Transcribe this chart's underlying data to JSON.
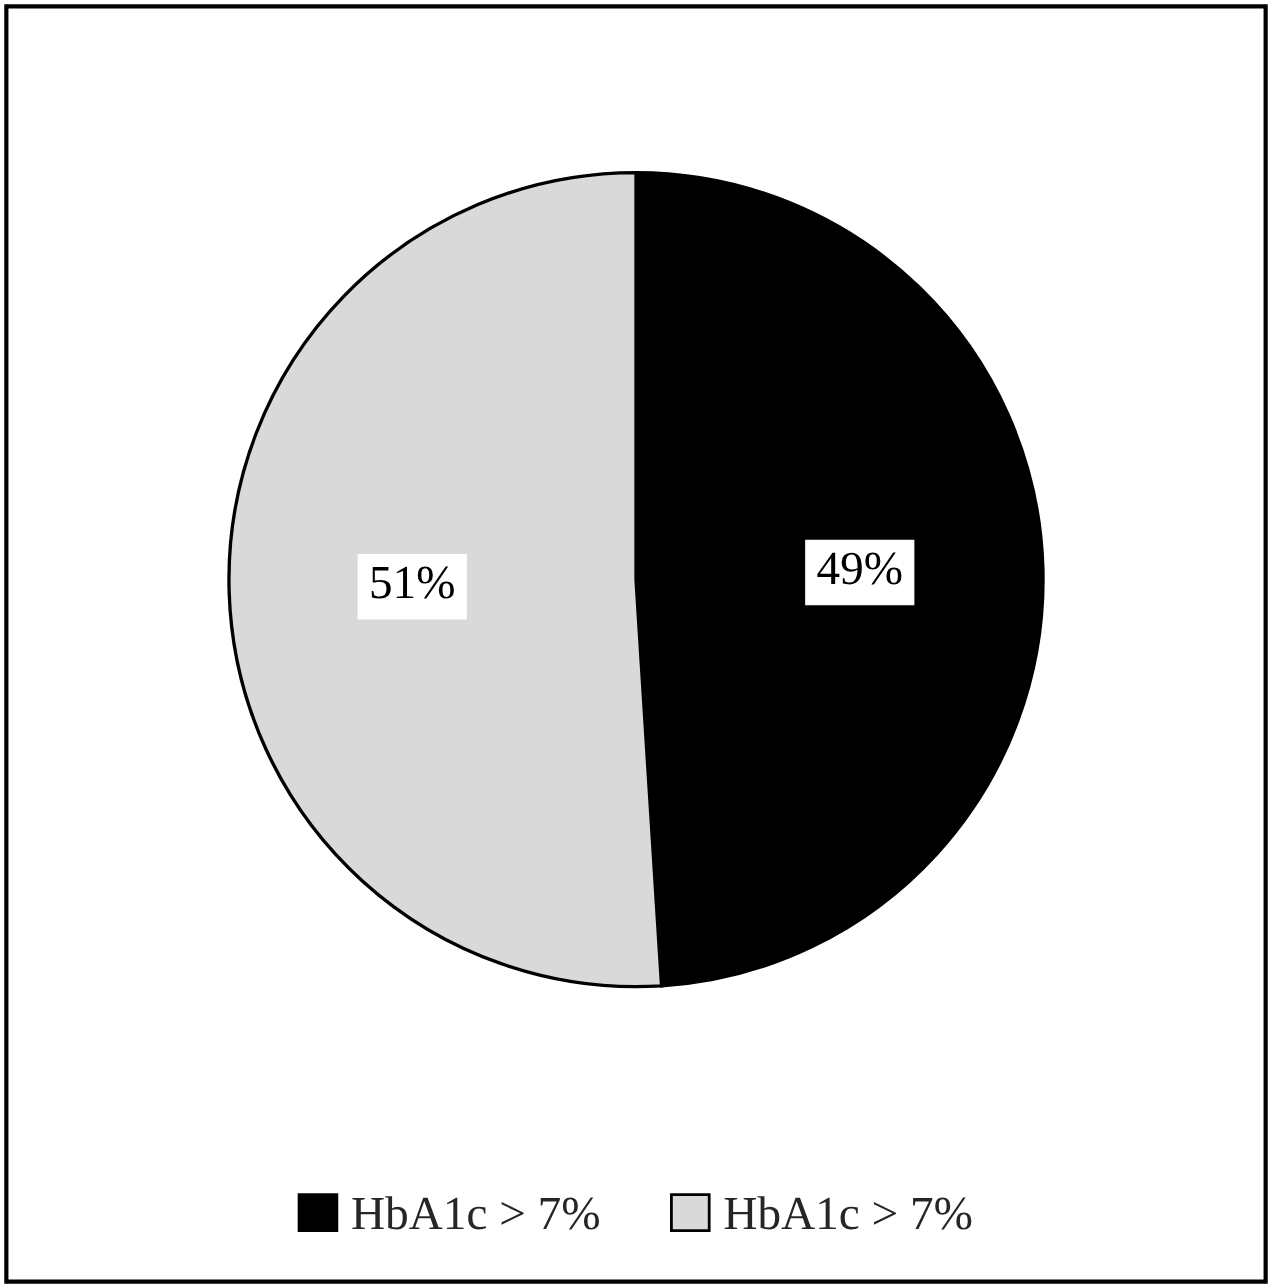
{
  "chart_data": {
    "type": "pie",
    "categories": [
      "HbA1c > 7%",
      "HbA1c > 7%"
    ],
    "values": [
      49,
      51
    ],
    "colors": [
      "#000000",
      "#d9d9d9"
    ],
    "value_labels": [
      "49%",
      "51%"
    ],
    "legend": "bottom"
  }
}
